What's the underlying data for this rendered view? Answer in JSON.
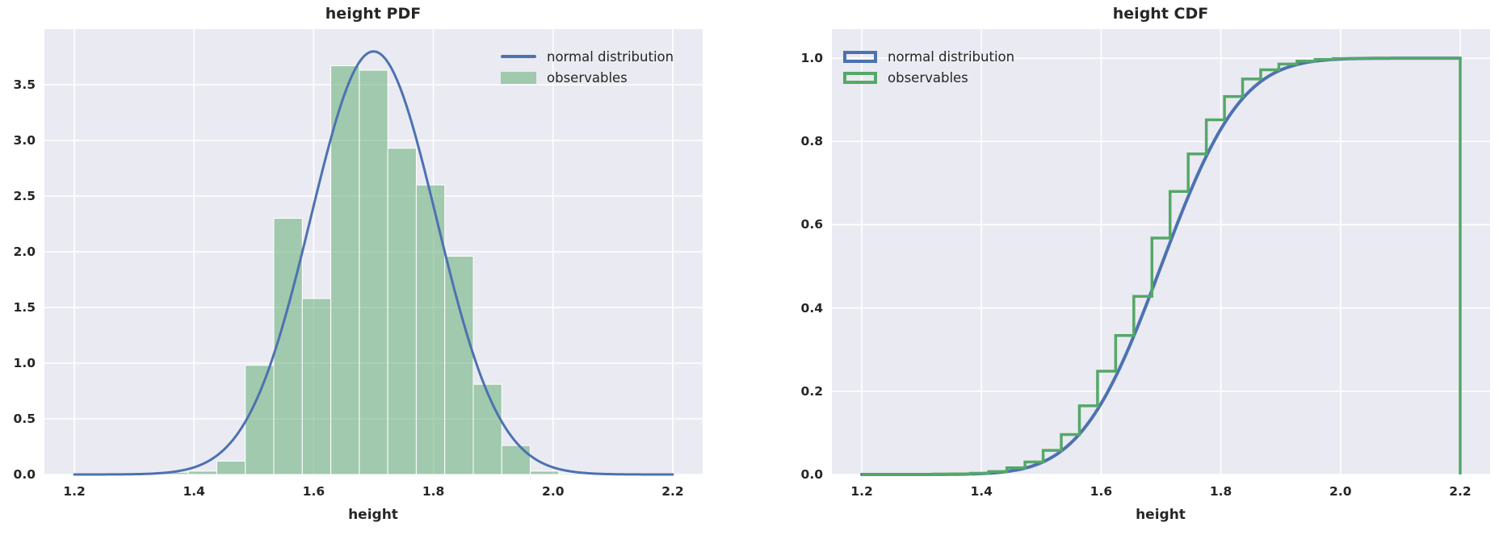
{
  "style": {
    "figure_bg": "#ffffff",
    "axes_bg": "#eaeaf2",
    "grid_color": "#ffffff",
    "text_color": "#262626",
    "blue": "#4c72b0",
    "green": "#55a868",
    "bar_fill": "rgba(85,168,104,0.5)",
    "bar_edge": "#ffffff"
  },
  "chart_data": [
    {
      "type": "bar",
      "title": "height PDF",
      "xlabel": "height",
      "ylabel": "",
      "grid": true,
      "xlim": [
        1.15,
        2.25
      ],
      "ylim": [
        0,
        4.0
      ],
      "xticks": [
        1.2,
        1.4,
        1.6,
        1.8,
        2.0,
        2.2
      ],
      "xtick_labels": [
        "1.2",
        "1.4",
        "1.6",
        "1.8",
        "2.0",
        "2.2"
      ],
      "yticks": [
        0.0,
        0.5,
        1.0,
        1.5,
        2.0,
        2.5,
        3.0,
        3.5
      ],
      "ytick_labels": [
        "0.0",
        "0.5",
        "1.0",
        "1.5",
        "2.0",
        "2.5",
        "3.0",
        "3.5"
      ],
      "legend": {
        "position": "upper right",
        "entries": [
          {
            "label": "normal distribution",
            "swatch": "line",
            "color": "#4c72b0"
          },
          {
            "label": "observables",
            "swatch": "patch",
            "color": "#55a868"
          }
        ]
      },
      "histogram": {
        "bin_start": 1.2,
        "bin_width": 0.047619,
        "density_heights": [
          0,
          0,
          0,
          0.02,
          0.03,
          0.12,
          0.98,
          2.3,
          1.58,
          3.67,
          3.63,
          2.93,
          2.6,
          1.96,
          0.81,
          0.26,
          0.03,
          0.01,
          0.01,
          0.008,
          0.008
        ]
      },
      "normal_curve": {
        "mu": 1.7,
        "sigma": 0.105,
        "x_min": 1.2,
        "x_max": 2.2,
        "peak": 3.8
      }
    },
    {
      "type": "line",
      "title": "height CDF",
      "xlabel": "height",
      "ylabel": "",
      "grid": true,
      "xlim": [
        1.15,
        2.25
      ],
      "ylim": [
        0,
        1.07
      ],
      "xticks": [
        1.2,
        1.4,
        1.6,
        1.8,
        2.0,
        2.2
      ],
      "xtick_labels": [
        "1.2",
        "1.4",
        "1.6",
        "1.8",
        "2.0",
        "2.2"
      ],
      "yticks": [
        0.0,
        0.2,
        0.4,
        0.6,
        0.8,
        1.0
      ],
      "ytick_labels": [
        "0.0",
        "0.2",
        "0.4",
        "0.6",
        "0.8",
        "1.0"
      ],
      "legend": {
        "position": "upper left",
        "entries": [
          {
            "label": "normal distribution",
            "swatch": "outline-blue",
            "color": "#4c72b0"
          },
          {
            "label": "observables",
            "swatch": "outline-green",
            "color": "#55a868"
          }
        ]
      },
      "normal_cdf_curve": {
        "mu": 1.7,
        "sigma": 0.105,
        "x_min": 1.2,
        "x_max": 2.2
      },
      "empirical_cdf_steps": {
        "bin_start": 1.2,
        "bin_width": 0.030303,
        "cumulative": [
          0,
          0,
          0,
          0,
          0.001,
          0.0015,
          0.003,
          0.007,
          0.016,
          0.03,
          0.058,
          0.096,
          0.165,
          0.248,
          0.334,
          0.428,
          0.568,
          0.68,
          0.77,
          0.852,
          0.908,
          0.95,
          0.972,
          0.986,
          0.993,
          0.997,
          0.999,
          0.9995,
          1,
          1,
          1,
          1,
          1
        ],
        "drop_to_zero_at": 2.2
      }
    }
  ]
}
